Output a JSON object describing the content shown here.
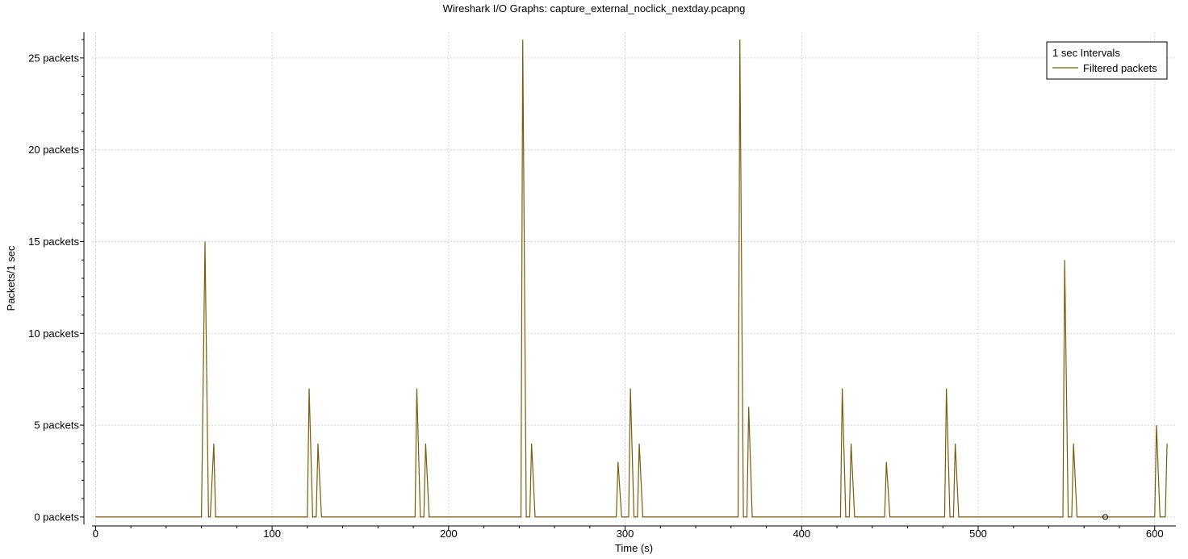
{
  "chart_data": {
    "type": "line",
    "title": "Wireshark I/O Graphs: capture_external_noclick_nextday.pcapng",
    "xlabel": "Time (s)",
    "ylabel": "Packets/1 sec",
    "xlim": [
      -2,
      612
    ],
    "ylim": [
      -0.4,
      26.4
    ],
    "x_ticks": [
      0,
      100,
      200,
      300,
      400,
      500,
      600
    ],
    "y_ticks": [
      0,
      5,
      10,
      15,
      20,
      25
    ],
    "y_tick_labels": [
      "0 packets",
      "5 packets",
      "10 packets",
      "15 packets",
      "20 packets",
      "25 packets"
    ],
    "grid": true,
    "legend": {
      "placement": "top-right",
      "title": "1 sec Intervals",
      "entries": [
        "Filtered packets"
      ]
    },
    "series": [
      {
        "name": "Filtered packets",
        "color": "#7a5c0a",
        "x": [
          0,
          60,
          62,
          64,
          65,
          67,
          68,
          120,
          121,
          123,
          125,
          126,
          128,
          181,
          182,
          184,
          186,
          187,
          189,
          241,
          242,
          244,
          246,
          247,
          249,
          295,
          296,
          298,
          300,
          302,
          303,
          305,
          307,
          308,
          310,
          364,
          365,
          367,
          369,
          370,
          372,
          422,
          423,
          425,
          427,
          428,
          430,
          447,
          448,
          450,
          481,
          482,
          484,
          486,
          487,
          489,
          548,
          549,
          551,
          553,
          554,
          556,
          600,
          601,
          603,
          606,
          607
        ],
        "values": [
          0,
          0,
          15,
          0,
          0,
          4,
          0,
          0,
          7,
          0,
          0,
          4,
          0,
          0,
          7,
          0,
          0,
          4,
          0,
          0,
          26,
          0,
          0,
          4,
          0,
          0,
          3,
          0,
          0,
          0,
          7,
          0,
          0,
          4,
          0,
          0,
          26,
          0,
          0,
          6,
          0,
          0,
          7,
          0,
          0,
          4,
          0,
          0,
          3,
          0,
          0,
          7,
          0,
          0,
          4,
          0,
          0,
          14,
          0,
          0,
          4,
          0,
          0,
          5,
          0,
          0,
          4
        ]
      }
    ],
    "marker_point": {
      "x": 572,
      "y": 0
    }
  }
}
